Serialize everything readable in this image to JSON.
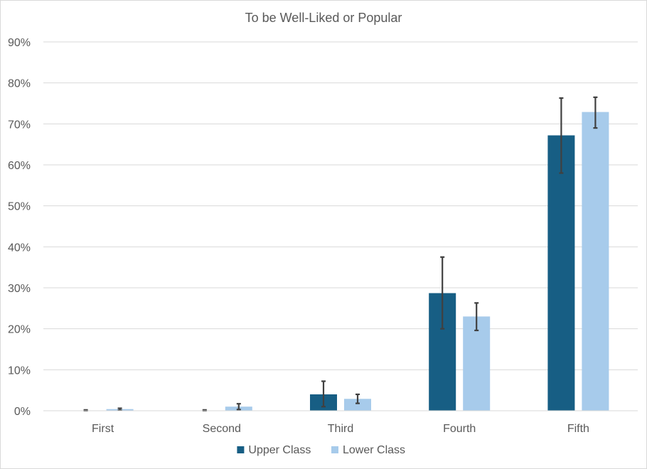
{
  "chart_data": {
    "type": "bar",
    "title": "To be Well-Liked or Popular",
    "xlabel": "",
    "ylabel": "",
    "categories": [
      "First",
      "Second",
      "Third",
      "Fourth",
      "Fifth"
    ],
    "series": [
      {
        "name": "Upper Class",
        "color": "#175e84",
        "values": [
          0.0,
          0.0,
          4.0,
          28.7,
          67.2
        ],
        "error_low": [
          0.0,
          0.0,
          1.0,
          20.0,
          58.0
        ],
        "error_high": [
          0.2,
          0.2,
          7.2,
          37.5,
          76.3
        ]
      },
      {
        "name": "Lower Class",
        "color": "#a7cbeb",
        "values": [
          0.4,
          1.0,
          2.9,
          23.0,
          72.9
        ],
        "error_low": [
          0.1,
          0.3,
          1.8,
          19.6,
          69.0
        ],
        "error_high": [
          0.6,
          1.7,
          4.0,
          26.3,
          76.5
        ]
      }
    ],
    "ylim": [
      0,
      90
    ],
    "yticks": [
      0,
      10,
      20,
      30,
      40,
      50,
      60,
      70,
      80,
      90
    ],
    "ytick_labels": [
      "0%",
      "10%",
      "20%",
      "30%",
      "40%",
      "50%",
      "60%",
      "70%",
      "80%",
      "90%"
    ],
    "grid": true,
    "legend_position": "bottom"
  }
}
